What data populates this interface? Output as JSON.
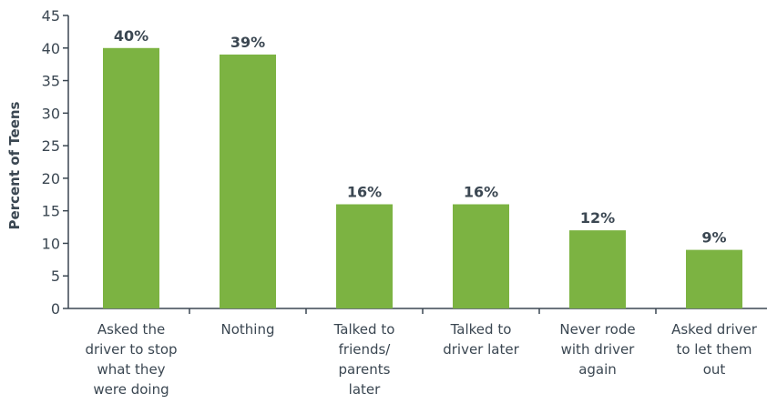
{
  "chart_data": {
    "type": "bar",
    "ylabel": "Percent of Teens",
    "xlabel": "",
    "ylim": [
      0,
      45
    ],
    "yticks": [
      0,
      5,
      10,
      15,
      20,
      25,
      30,
      35,
      40,
      45
    ],
    "grid": false,
    "bar_color": "#7cb342",
    "categories": [
      [
        "Asked the",
        "driver to stop",
        "what they",
        "were doing"
      ],
      [
        "Nothing"
      ],
      [
        "Talked to",
        "friends/",
        "parents",
        "later"
      ],
      [
        "Talked to",
        "driver later"
      ],
      [
        "Never rode",
        "with driver",
        "again"
      ],
      [
        "Asked driver",
        "to let them",
        "out"
      ]
    ],
    "values": [
      40,
      39,
      16,
      16,
      12,
      9
    ],
    "data_labels": [
      "40%",
      "39%",
      "16%",
      "16%",
      "12%",
      "9%"
    ]
  }
}
